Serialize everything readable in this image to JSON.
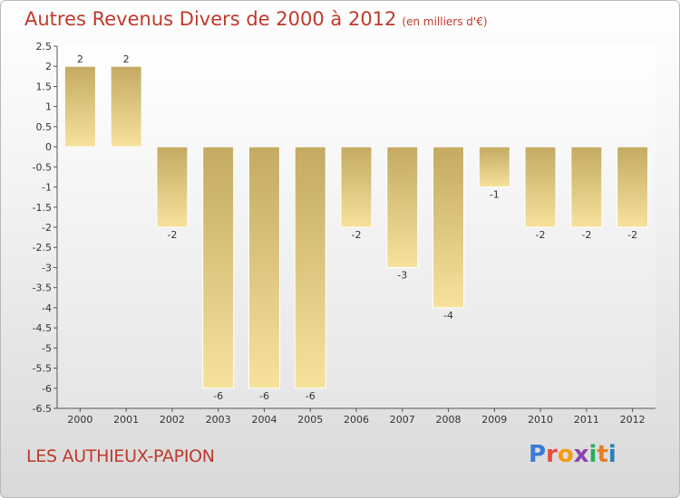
{
  "title": "Autres Revenus Divers de 2000 à 2012",
  "unit": "(en milliers d'€)",
  "place": "LES AUTHIEUX-PAPION",
  "logo": {
    "text": "Proxiti",
    "colors": [
      "#3a7bd5",
      "#e74c3c",
      "#f39c12",
      "#8e44ad",
      "#27ae60",
      "#e67e22",
      "#2980b9"
    ]
  },
  "chart_data": {
    "type": "bar",
    "categories": [
      "2000",
      "2001",
      "2002",
      "2003",
      "2004",
      "2005",
      "2006",
      "2007",
      "2008",
      "2009",
      "2010",
      "2011",
      "2012"
    ],
    "values": [
      2,
      2,
      -2,
      -6,
      -6,
      -6,
      -2,
      -3,
      -4,
      -1,
      -2,
      -2,
      -2
    ],
    "ylim": [
      -6.5,
      2.5
    ],
    "yticks": [
      "2.5",
      "2",
      "1.5",
      "1",
      "0.5",
      "0",
      "-0.5",
      "-1",
      "-1.5",
      "-2",
      "-2.5",
      "-3",
      "-3.5",
      "-4",
      "-4.5",
      "-5",
      "-5.5",
      "-6",
      "-6.5"
    ],
    "ytick_values": [
      2.5,
      2,
      1.5,
      1,
      0.5,
      0,
      -0.5,
      -1,
      -1.5,
      -2,
      -2.5,
      -3,
      -3.5,
      -4,
      -4.5,
      -5,
      -5.5,
      -6,
      -6.5
    ],
    "grid": false,
    "bar_color": "#d8bf78"
  }
}
